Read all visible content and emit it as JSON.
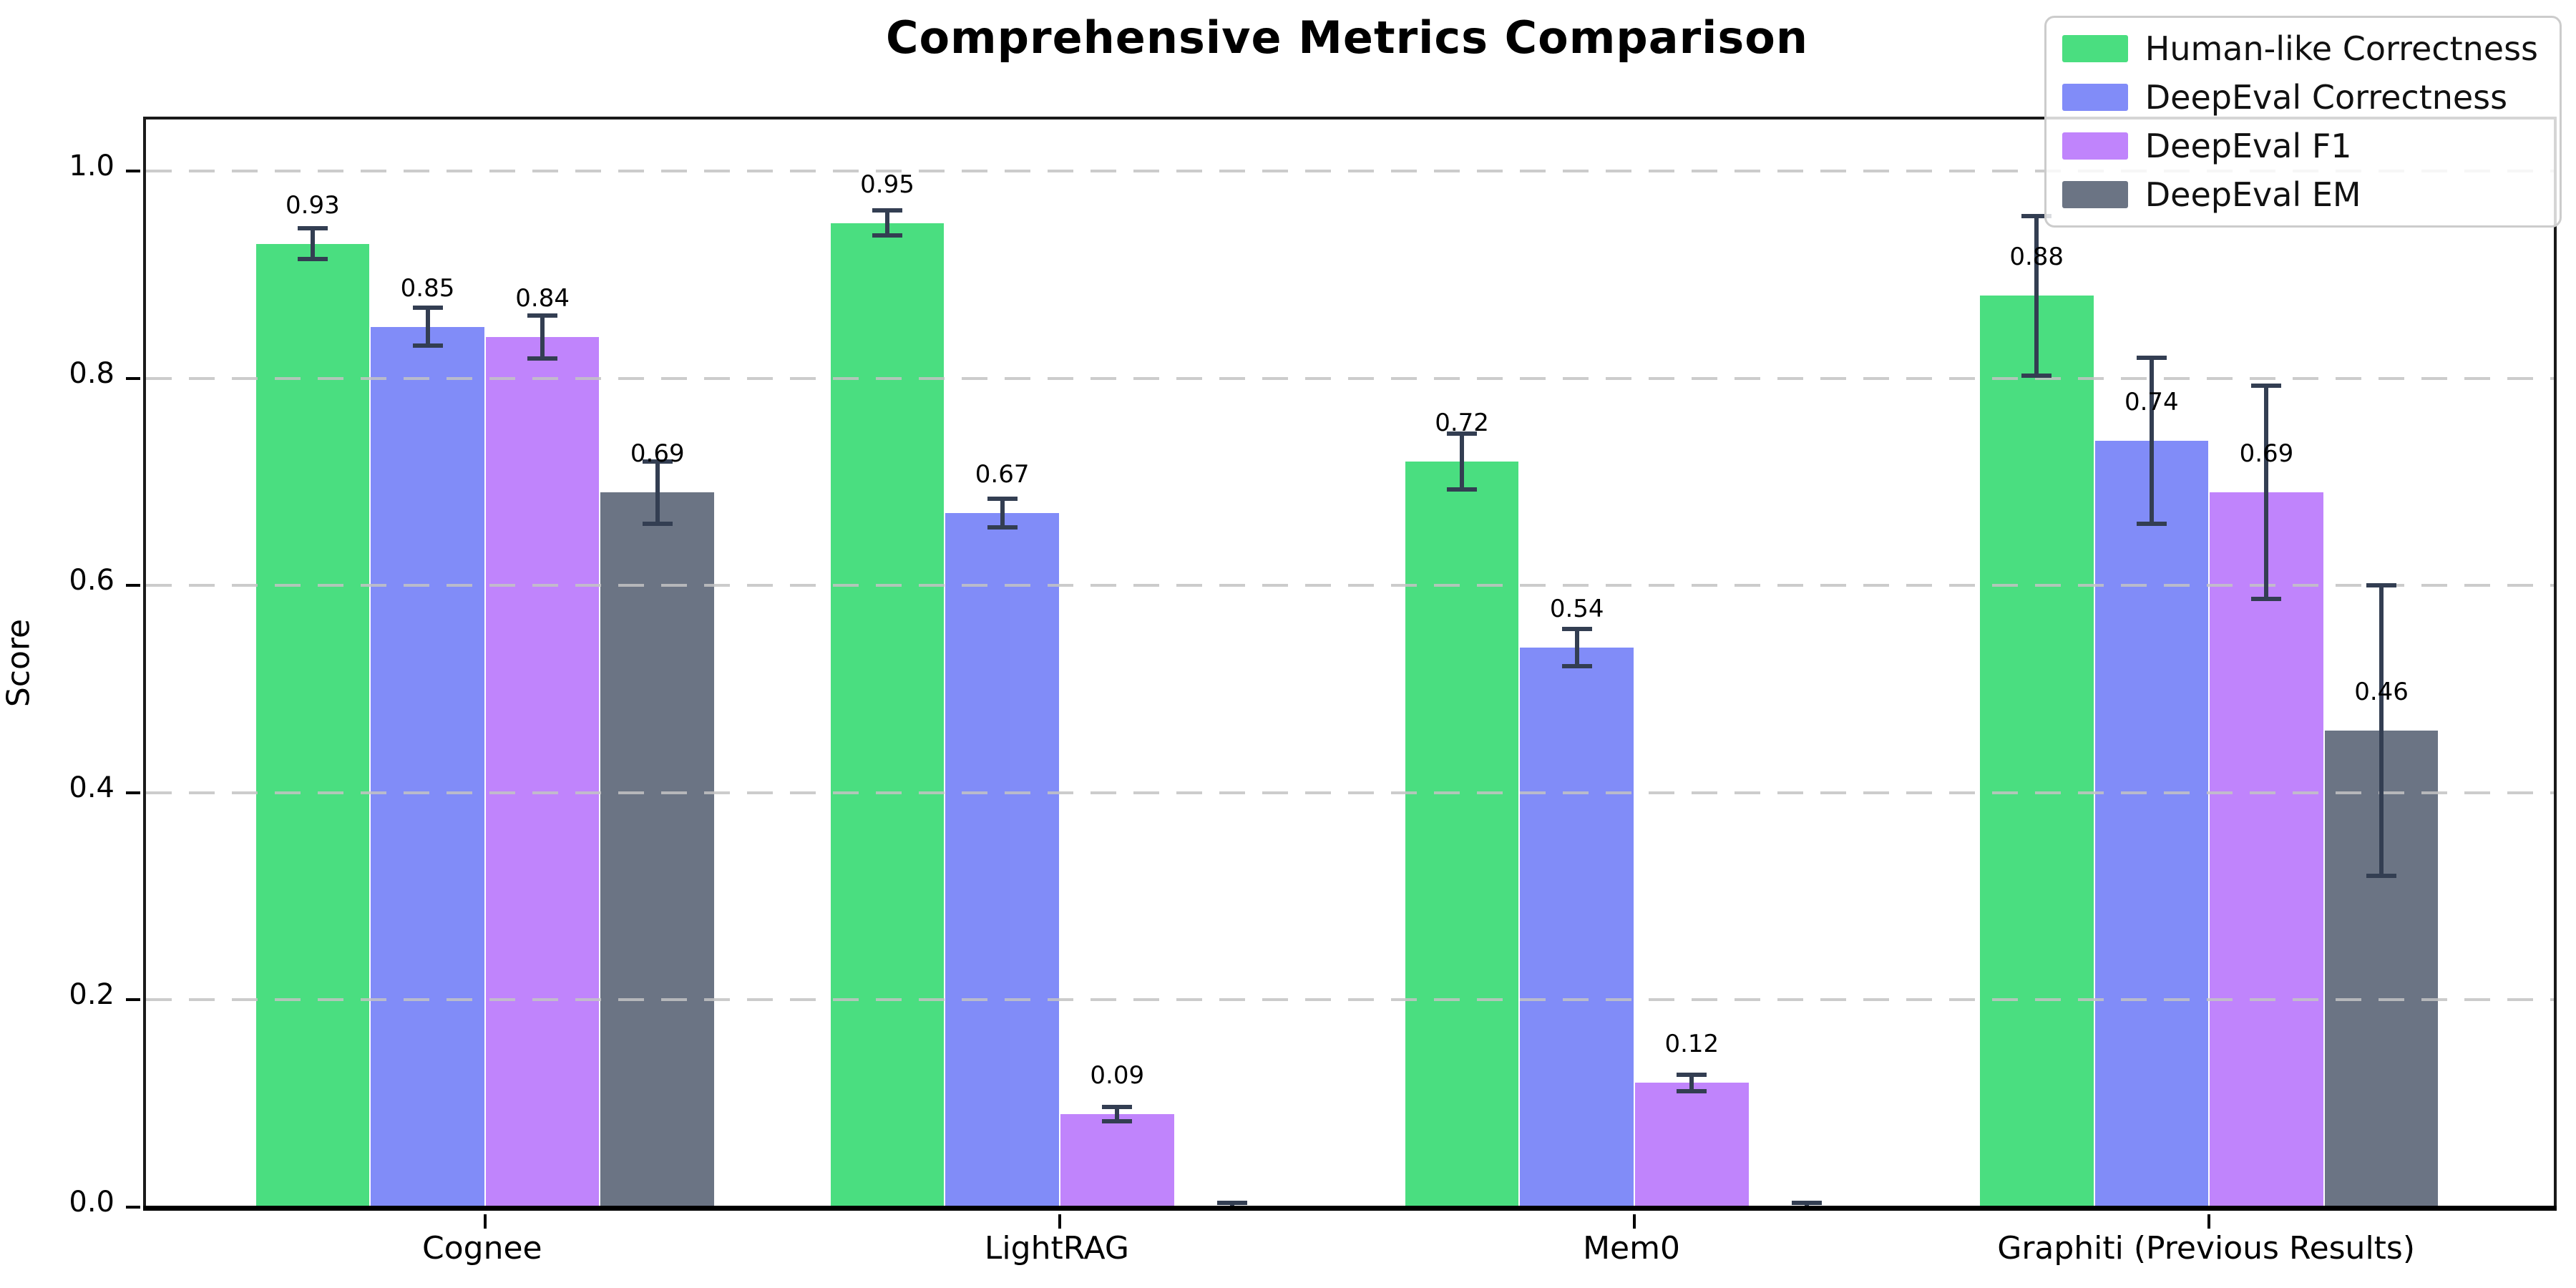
{
  "chart_data": {
    "type": "bar",
    "title": "Comprehensive Metrics Comparison",
    "ylabel": "Score",
    "xlabel": "",
    "categories": [
      "Cognee",
      "LightRAG",
      "Mem0",
      "Graphiti (Previous Results)"
    ],
    "series": [
      {
        "name": "Human-like Correctness",
        "color": "#4ade80",
        "values": [
          0.93,
          0.95,
          0.72,
          0.88
        ],
        "errors": [
          0.015,
          0.012,
          0.027,
          0.077
        ],
        "labels": [
          "0.93",
          "0.95",
          "0.72",
          "0.88"
        ]
      },
      {
        "name": "DeepEval Correctness",
        "color": "#818cf8",
        "values": [
          0.85,
          0.67,
          0.54,
          0.74
        ],
        "errors": [
          0.018,
          0.014,
          0.018,
          0.08
        ],
        "labels": [
          "0.85",
          "0.67",
          "0.54",
          "0.74"
        ]
      },
      {
        "name": "DeepEval F1",
        "color": "#c084fc",
        "values": [
          0.84,
          0.09,
          0.12,
          0.69
        ],
        "errors": [
          0.021,
          0.007,
          0.008,
          0.103
        ],
        "labels": [
          "0.84",
          "0.09",
          "0.12",
          "0.69"
        ]
      },
      {
        "name": "DeepEval EM",
        "color": "#6b7484",
        "values": [
          0.69,
          0.0,
          0.0,
          0.46
        ],
        "errors": [
          0.03,
          0.004,
          0.004,
          0.14
        ],
        "labels": [
          "0.69",
          "",
          "",
          "0.46"
        ]
      }
    ],
    "yticks": [
      {
        "value": 0.0,
        "label": "0.0"
      },
      {
        "value": 0.2,
        "label": "0.2"
      },
      {
        "value": 0.4,
        "label": "0.4"
      },
      {
        "value": 0.6,
        "label": "0.6"
      },
      {
        "value": 0.8,
        "label": "0.8"
      },
      {
        "value": 1.0,
        "label": "1.0"
      }
    ],
    "ylim": [
      0,
      1.05
    ],
    "grid": "horizontal-dashed",
    "legend_position": "upper-right",
    "error_bar_color": "#333e52",
    "bar_group_width_ratio": 0.8
  }
}
